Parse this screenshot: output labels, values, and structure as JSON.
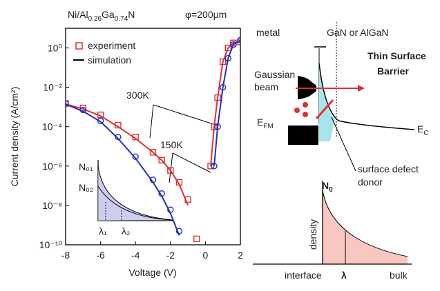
{
  "chart_data": {
    "type": "scatter-line",
    "title_parts": [
      "Ni/Al",
      "0.26",
      "Ga",
      "0.74",
      "N"
    ],
    "subtitle": "φ=200μm",
    "x_label": "Voltage (V)",
    "y_label": "Current density (A/cm²)",
    "xlim": [
      -8,
      2
    ],
    "xticks": [
      -8,
      -6,
      -4,
      -2,
      0,
      2
    ],
    "ylim": [
      1e-10,
      10
    ],
    "log_y": true,
    "yticks": [
      {
        "value": 1,
        "label": "10⁰"
      },
      {
        "value": 0.01,
        "label": "10⁻²"
      },
      {
        "value": 0.0001,
        "label": "10⁻⁴"
      },
      {
        "value": 1e-06,
        "label": "10⁻⁶"
      },
      {
        "value": 1e-08,
        "label": "10⁻⁸"
      },
      {
        "value": 1e-10,
        "label": "10⁻¹⁰"
      }
    ],
    "legend": [
      "experiment",
      "simulation"
    ],
    "annotations": [
      "300K",
      "150K"
    ],
    "inset_labels": [
      "N₀₁",
      "N₀₂",
      "λ₁",
      "λ₂"
    ],
    "x": [
      -8,
      -7,
      -6,
      -5,
      -4,
      -3,
      -2.5,
      -2,
      -1.5,
      -1,
      -0.5,
      0,
      0.3,
      0.5,
      0.7,
      1,
      1.3,
      1.6,
      2
    ],
    "series": [
      {
        "marker": "square",
        "color": "#e03030",
        "values": [
          0.0015,
          0.0009,
          0.0004,
          0.00012,
          3e-05,
          5e-06,
          2e-06,
          6e-07,
          1.5e-07,
          2e-08,
          2e-10,
          null,
          1e-06,
          0.0001,
          0.003,
          0.2,
          1,
          1.8,
          2
        ]
      },
      {
        "marker": "line",
        "color": "#e03030",
        "values": [
          0.0014,
          0.0008,
          0.00035,
          0.0001,
          2.5e-05,
          5e-06,
          2e-06,
          6e-07,
          1.2e-07,
          1e-08,
          null,
          null,
          1e-06,
          0.0001,
          0.003,
          0.2,
          1,
          1.8,
          2.2
        ]
      },
      {
        "marker": "circle",
        "color": "#2030c0",
        "values": [
          0.0015,
          0.0007,
          0.0002,
          3e-05,
          3e-06,
          2e-07,
          4e-08,
          6e-09,
          5e-10,
          null,
          null,
          null,
          null,
          1e-06,
          0.0001,
          0.01,
          0.3,
          1.5,
          2.5
        ]
      },
      {
        "marker": "line",
        "color": "#2030c0",
        "values": [
          0.0014,
          0.0006,
          0.00018,
          2.5e-05,
          2.5e-06,
          1.5e-07,
          3e-08,
          4e-09,
          3e-10,
          null,
          null,
          null,
          null,
          1e-06,
          0.0001,
          0.01,
          0.3,
          1.5,
          2.5
        ]
      }
    ]
  },
  "diagram": {
    "metal": "metal",
    "semiconductor": "GaN or AlGaN",
    "beam": [
      "Gaussian",
      "beam"
    ],
    "barrier": [
      "Thin Surface",
      "Barrier"
    ],
    "efm": "E",
    "efm_sub": "FM",
    "ec": "E",
    "ec_sub": "C",
    "donor": [
      "surface defect",
      "donor"
    ],
    "n0": "N",
    "n0_sub": "0",
    "density": "density",
    "interface": "interface",
    "lambda": "λ",
    "bulk": "bulk"
  }
}
